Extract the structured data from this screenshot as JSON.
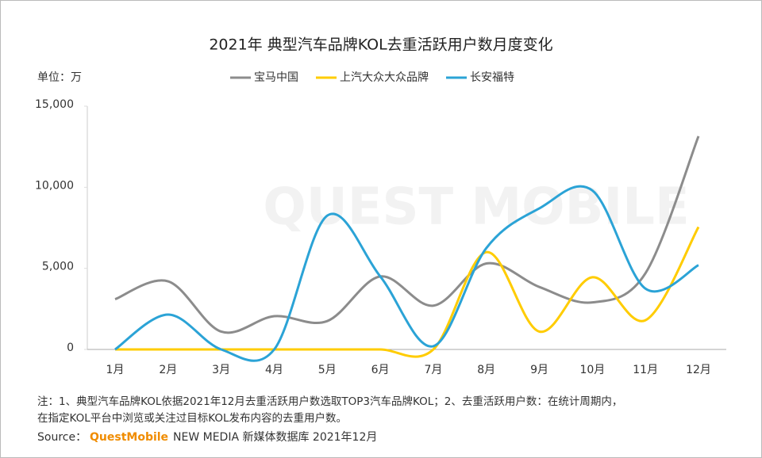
{
  "chart_data": {
    "type": "line",
    "title": "2021年 典型汽车品牌KOL去重活跃用户数月度变化",
    "unit_label": "单位：万",
    "watermark": "QUEST MOBILE",
    "categories": [
      "1月",
      "2月",
      "3月",
      "4月",
      "5月",
      "6月",
      "7月",
      "8月",
      "9月",
      "10月",
      "11月",
      "12月"
    ],
    "series": [
      {
        "name": "宝马中国",
        "color": "#8c8c8c",
        "values": [
          3100,
          4200,
          1100,
          2050,
          1750,
          4500,
          2700,
          5300,
          3850,
          2900,
          4700,
          13150
        ]
      },
      {
        "name": "上汽大众大众品牌",
        "color": "#ffcc00",
        "values": [
          0,
          0,
          0,
          0,
          0,
          0,
          0,
          6000,
          1100,
          4450,
          1800,
          7550
        ]
      },
      {
        "name": "长安福特",
        "color": "#2ba3d6",
        "values": [
          0,
          2150,
          0,
          0,
          8250,
          4500,
          200,
          6250,
          8700,
          9800,
          3750,
          5200
        ]
      }
    ],
    "ylim": [
      0,
      15000
    ],
    "yticks": [
      0,
      {
        "value": 5000,
        "label": "5,000"
      },
      {
        "value": 10000,
        "label": "10,000"
      },
      {
        "value": 15000,
        "label": "15,000"
      }
    ],
    "legend": "top",
    "note_lines": [
      "注：1、典型汽车品牌KOL依据2021年12月去重活跃用户数选取TOP3汽车品牌KOL；2、去重活跃用户数：在统计周期内，",
      "在指定KOL平台中浏览或关注过目标KOL发布内容的去重用户数。"
    ],
    "source_label": "Source：",
    "source_brand": "QuestMobile",
    "source_rest": "NEW MEDIA 新媒体数据库 2021年12月"
  }
}
